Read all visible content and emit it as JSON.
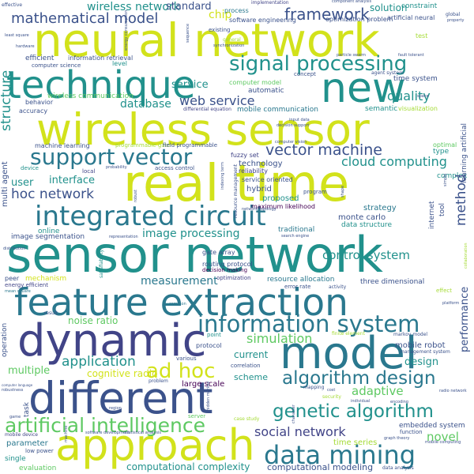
{
  "palette": {
    "yellow": "#d2e21b",
    "lime": "#a5db36",
    "green": "#5ec962",
    "teal": "#21918c",
    "teal_dark": "#2a788e",
    "blue": "#3b528b",
    "indigo": "#414487",
    "purple": "#440154"
  },
  "words": {
    "neural_network": "neural network",
    "sensor_network": "sensor network",
    "wireless_sensor": "wireless sensor",
    "real_time": "real time",
    "technique": "technique",
    "feature_extraction": "feature extraction",
    "dynamic": "dynamic",
    "different": "different",
    "approach": "approach",
    "model": "model",
    "new": "new",
    "integrated_circuit": "integrated circuit",
    "data_mining": "data mining",
    "information_system": "information system",
    "support_vector": "support vector",
    "signal_processing": "signal processing",
    "artificial_intelligence": "artificial intelligence",
    "genetic_algorithm": "genetic algorithm",
    "algorithm_design": "algorithm design",
    "ad_hoc": "ad hoc",
    "mathematical_model": "mathematical model",
    "framework": "framework",
    "vector_machine": "vector machine",
    "web_service": "web service",
    "hoc_network": "hoc network",
    "social_network": "social network",
    "cloud_computing": "cloud computing",
    "image_processing": "image processing",
    "control_system": "control system",
    "simulation": "simulation",
    "application": "application",
    "adaptive": "adaptive",
    "measurement": "measurement",
    "quality": "quality",
    "structure": "structure",
    "method": "method",
    "performance": "performance",
    "wireless_network": "wireless network",
    "standard": "standard",
    "solution": "solution",
    "chip": "chip",
    "database": "database",
    "service": "service",
    "user": "user",
    "interface": "interface",
    "noise_ratio": "noise ratio",
    "multiple": "multiple",
    "cognitive_radio": "cognitive radio",
    "computational_complexity": "computational complexity",
    "computational_modeling": "computational modeling",
    "design": "design",
    "novel": "novel",
    "current": "current",
    "scheme": "scheme",
    "large_scale": "large scale",
    "mobile_robot": "mobile robot",
    "markov_model": "markov model",
    "embedded_system": "embedded system",
    "time_series": "time series",
    "parameter": "parameter",
    "evaluation": "evaluation",
    "single": "single",
    "low_power": "low power",
    "online": "online",
    "image_segmentation": "image segmentation",
    "strategy": "strategy",
    "monte_carlo": "monte carlo",
    "data_structure": "data structure",
    "internet": "internet",
    "tool": "tool",
    "proposed": "proposed",
    "hybrid": "hybrid",
    "machine_learning": "machine learning",
    "accuracy": "accuracy",
    "behavior": "behavior",
    "efficient": "efficient",
    "information_retrieval": "information retrieval",
    "computer_science": "computer science",
    "level": "level",
    "wireless_communication": "wireless communication",
    "automatic": "automatic",
    "mobile_communication": "mobile communication",
    "computer_model": "computer model",
    "time_system": "time system",
    "semantic": "semantic",
    "visualization": "visualization",
    "optimal": "optimal",
    "type": "type",
    "complex": "complex",
    "technology": "technology",
    "reliability": "reliability",
    "fuzzy_set": "fuzzy set",
    "field_programmable": "field programmable",
    "programmable_gate": "programmable gate",
    "gate_array": "gate array",
    "routing_protocol": "routing protocol",
    "decision_making": "decision making",
    "optimization": "optimization",
    "resource_allocation": "resource allocation",
    "error_rate": "error rate",
    "three_dimensional": "three dimensional",
    "mechanism": "mechanism",
    "energy_efficient": "energy efficient",
    "peer": "peer",
    "point": "point",
    "various": "various",
    "protocol": "protocol",
    "correlation": "correlation",
    "problem": "problem",
    "operation": "operation",
    "task": "task",
    "mobile_device": "mobile device",
    "software_development": "software development",
    "statistical_analysis": "statistical analysis",
    "graph_theory": "graph theory",
    "mobile_computing": "mobile computing",
    "function": "function",
    "data_analysis": "data analysis",
    "implementation": "implementation",
    "software_engineering": "software engineering",
    "optimization_problem": "optimization problem",
    "artificial_neural": "artificial neural",
    "constraint": "constraint",
    "global": "global",
    "property": "property",
    "process": "process",
    "existing": "existing",
    "synchronization": "synchronization",
    "general": "general",
    "least_square": "least square",
    "hardware": "hardware",
    "effective": "effective",
    "component_analysis": "component analysis",
    "test": "test",
    "concept": "concept",
    "agent_system": "agent system",
    "particle_swarm": "particle swarm",
    "fault_tolerant": "fault tolerant",
    "differential_equation": "differential equation",
    "learning_artificial": "learning artificial",
    "multi_agent": "multi agent",
    "device": "device",
    "local": "local",
    "access_control": "access control",
    "service_oriented": "service oriented",
    "resource_management": "resource management",
    "maximum_likelihood": "maximum likelihood",
    "program": "program",
    "shape": "shape",
    "traditional": "traditional",
    "search_engine": "search engine",
    "indexing_term": "indexing term",
    "network_topology": "network topology",
    "representation": "representation",
    "robust": "robust",
    "probability": "probability",
    "distribution": "distribution",
    "machine": "machine",
    "satisfiability": "satisfiability",
    "space": "space",
    "effect": "effect",
    "platform": "platform",
    "activity": "activity",
    "collaboration": "collaboration",
    "common": "common",
    "result": "result",
    "mean_square": "mean square",
    "finite_element": "finite element",
    "management_system": "management system",
    "character": "character",
    "robustness": "robustness",
    "mapping": "mapping",
    "cost": "cost",
    "security": "security",
    "individual": "individual",
    "encoding": "encoding",
    "radio_network": "radio network",
    "region": "region",
    "server": "server",
    "case_study": "case study",
    "game": "game",
    "computer_vision": "computer vision",
    "decision_support": "decision support",
    "input_data": "input data",
    "sequence": "sequence",
    "energy_consumption": "energy consumption",
    "simple": "simple",
    "computer_language": "computer language",
    "hidden_markov": "hidden markov"
  }
}
